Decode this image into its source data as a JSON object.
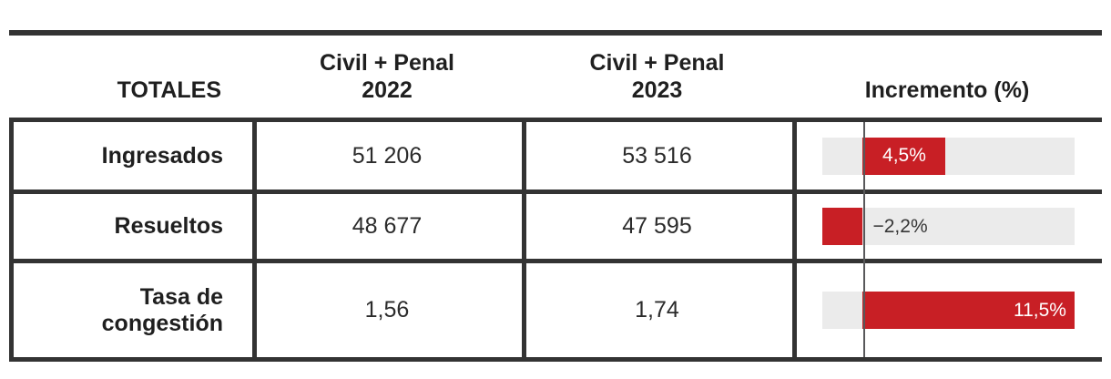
{
  "table": {
    "header": {
      "totales": "TOTALES",
      "col_2022": {
        "line1": "Civil + Penal",
        "line2": "2022"
      },
      "col_2023": {
        "line1": "Civil + Penal",
        "line2": "2023"
      },
      "incremento": "Incremento (%)"
    },
    "rows": [
      {
        "label": "Ingresados",
        "value_2022": "51 206",
        "value_2023": "53 516",
        "increment_text": "4,5%",
        "increment_value": 4.5
      },
      {
        "label": "Resueltos",
        "value_2022": "48 677",
        "value_2023": "47 595",
        "increment_text": "−2,2%",
        "increment_value": -2.2
      },
      {
        "label": "Tasa de congestión",
        "value_2022": "1,56",
        "value_2023": "1,74",
        "increment_text": "11,5%",
        "increment_value": 11.5
      }
    ]
  },
  "chart_data": {
    "type": "table",
    "columns": [
      "TOTALES",
      "Civil + Penal 2022",
      "Civil + Penal 2023",
      "Incremento (%)"
    ],
    "rows": [
      [
        "Ingresados",
        51206,
        53516,
        4.5
      ],
      [
        "Resueltos",
        48677,
        47595,
        -2.2
      ],
      [
        "Tasa de congestión",
        1.56,
        1.74,
        11.5
      ]
    ],
    "embedded_bar": {
      "type": "bar",
      "orientation": "horizontal",
      "categories": [
        "Ingresados",
        "Resueltos",
        "Tasa de congestión"
      ],
      "values": [
        4.5,
        -2.2,
        11.5
      ],
      "data_labels": [
        "4,5%",
        "−2,2%",
        "11,5%"
      ],
      "axis_range": [
        -2.2,
        11.5
      ],
      "unit": "%",
      "zero_line": true
    }
  },
  "colors": {
    "bar_red": "#c81f25",
    "bar_track": "#ebebeb",
    "border_dark": "#333333",
    "baseline_gray": "#58585a",
    "text_dark": "#1f1f1f"
  }
}
